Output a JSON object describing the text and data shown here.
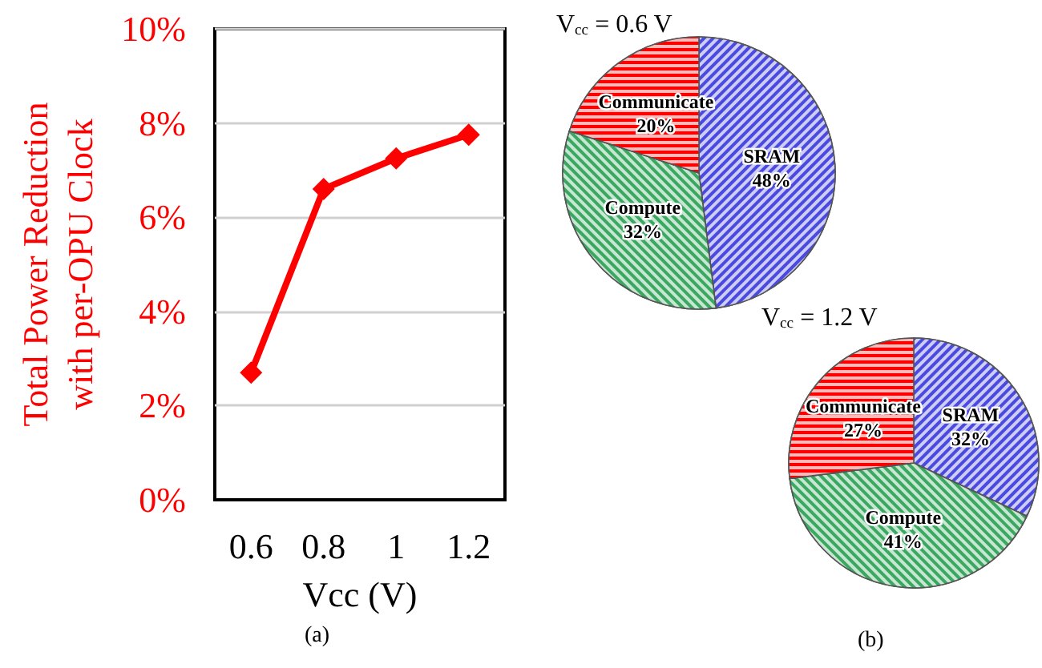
{
  "chart_data": [
    {
      "type": "line",
      "categories": [
        "0.6",
        "0.8",
        "1",
        "1.2"
      ],
      "xlabel": "Vcc (V)",
      "ylabel": "Total Power Reduction\nwith per-OPU Clock",
      "series": [
        {
          "color": "#ff0000",
          "values": [
            2.7,
            6.6,
            7.25,
            7.75
          ]
        }
      ],
      "ylim": [
        0,
        10
      ],
      "yticks": [
        {
          "value": 0,
          "label": "0%"
        },
        {
          "value": 2,
          "label": "2%"
        },
        {
          "value": 4,
          "label": "4%"
        },
        {
          "value": 6,
          "label": "6%"
        },
        {
          "value": 8,
          "label": "8%"
        },
        {
          "value": 10,
          "label": "10%"
        }
      ],
      "grid": "y",
      "marker": "diamond",
      "line_style": "solid",
      "annotations": [
        "(a)"
      ]
    },
    {
      "type": "pie",
      "title": "V$_{cc}$ = 0.6 V",
      "categories": [
        "SRAM",
        "Compute",
        "Communicate"
      ],
      "values": [
        48,
        32,
        20
      ],
      "colors": [
        "#4a4ae0",
        "#3aa860",
        "#ff0000"
      ],
      "value_labels": [
        "48%",
        "32%",
        "20%"
      ]
    },
    {
      "type": "pie",
      "title": "V$_{cc}$ = 1.2 V",
      "categories": [
        "SRAM",
        "Compute",
        "Communicate"
      ],
      "values": [
        32,
        41,
        27
      ],
      "colors": [
        "#4a4ae0",
        "#3aa860",
        "#ff0000"
      ],
      "value_labels": [
        "32%",
        "41%",
        "27%"
      ],
      "annotations": [
        "(b)"
      ]
    }
  ]
}
